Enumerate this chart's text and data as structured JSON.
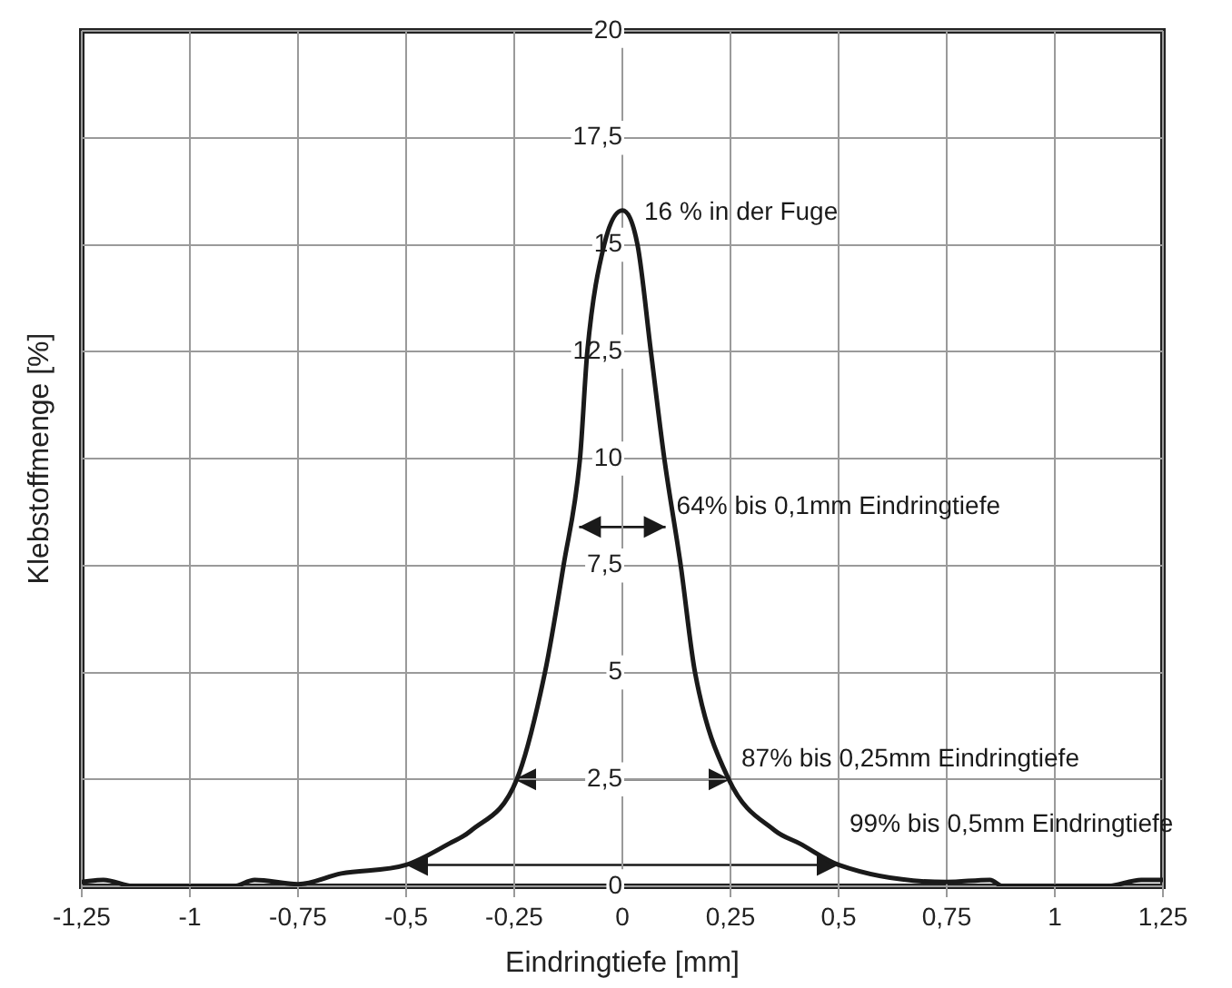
{
  "chart_data": {
    "type": "line",
    "xlabel": "Eindringtiefe [mm]",
    "ylabel": "Klebstoffmenge [%]",
    "x": [
      -1.25,
      -1.2,
      -1.13,
      -0.9,
      -0.85,
      -0.75,
      -0.65,
      -0.5,
      -0.4,
      -0.35,
      -0.244,
      -0.179,
      -0.136,
      -0.098,
      -0.081,
      -0.042,
      0,
      0.035,
      0.066,
      0.097,
      0.135,
      0.168,
      0.246,
      0.353,
      0.41,
      0.5,
      0.75,
      0.85,
      0.88,
      1.12,
      1.2,
      1.25
    ],
    "series": [
      {
        "color": "#1a1a1a",
        "values": [
          0.1,
          0.15,
          0,
          0,
          0.15,
          0.05,
          0.3,
          0.5,
          1,
          1.3,
          2.5,
          5,
          7.5,
          10,
          12.5,
          15,
          15.8,
          15,
          12.5,
          10,
          7.5,
          5,
          2.5,
          1.3,
          1,
          0.5,
          0.1,
          0.15,
          0,
          0,
          0.15,
          0.15
        ]
      }
    ],
    "xlim": [
      -1.25,
      1.25
    ],
    "xticks": [
      {
        "value": -1.25,
        "label": "-1,25"
      },
      -1,
      {
        "value": -0.75,
        "label": "-0,75"
      },
      {
        "value": -0.5,
        "label": "-0,5"
      },
      {
        "value": -0.25,
        "label": "-0,25"
      },
      0,
      {
        "value": 0.25,
        "label": "0,25"
      },
      {
        "value": 0.5,
        "label": "0,5"
      },
      {
        "value": 0.75,
        "label": "0,75"
      },
      1,
      {
        "value": 1.25,
        "label": "1,25"
      }
    ],
    "ylim": [
      0,
      20
    ],
    "yticks": [
      0,
      {
        "value": 2.5,
        "label": "2,5"
      },
      5,
      {
        "value": 7.5,
        "label": "7,5"
      },
      10,
      {
        "value": 12.5,
        "label": "12,5"
      },
      15,
      {
        "value": 17.5,
        "label": "17,5"
      },
      20
    ],
    "grid": true,
    "marker": "none",
    "line_style": "solid",
    "annotations": [
      {
        "text": "16 % in der Fuge",
        "x": 0,
        "y": 15.8
      },
      {
        "text": "64% bis 0,1mm Eindringtiefe",
        "x": 0.1,
        "y": 8.4
      },
      {
        "text": "87% bis 0,25mm Eindringtiefe",
        "x": 0.25,
        "y": 2.5
      },
      {
        "text": "99% bis 0,5mm Eindringtiefe",
        "x": 0.5,
        "y": 0.5
      }
    ]
  }
}
